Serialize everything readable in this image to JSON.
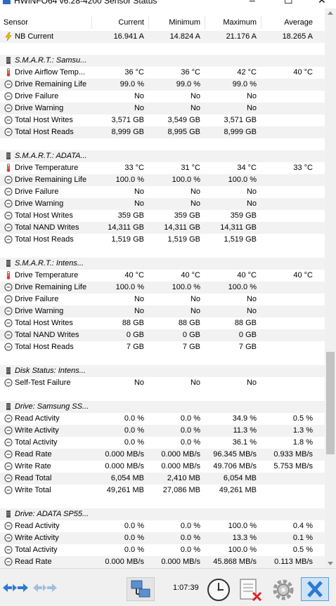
{
  "window": {
    "title": "HWiNFO64 v6.28-4200 Sensor Status",
    "minimize": "–",
    "maximize": "☐",
    "close": "✕"
  },
  "columns": {
    "sensor": "Sensor",
    "current": "Current",
    "minimum": "Minimum",
    "maximum": "Maximum",
    "average": "Average"
  },
  "rows": [
    {
      "type": "sensor",
      "icon": "current-icon",
      "name": "NB Current",
      "current": "16.941 A",
      "minimum": "14.824 A",
      "maximum": "21.176 A",
      "average": "18.265 A"
    },
    {
      "type": "spacer"
    },
    {
      "type": "group",
      "icon": "drive-icon",
      "name": "S.M.A.R.T.: Samsu..."
    },
    {
      "type": "sensor",
      "icon": "thermometer-icon",
      "name": "Drive Airflow Temp...",
      "current": "36 °C",
      "minimum": "36 °C",
      "maximum": "42 °C",
      "average": "40 °C"
    },
    {
      "type": "sensor",
      "icon": "status-icon",
      "name": "Drive Remaining Life",
      "current": "99.0 %",
      "minimum": "99.0 %",
      "maximum": "99.0 %",
      "average": ""
    },
    {
      "type": "sensor",
      "icon": "status-icon",
      "name": "Drive Failure",
      "current": "No",
      "minimum": "No",
      "maximum": "No",
      "average": ""
    },
    {
      "type": "sensor",
      "icon": "status-icon",
      "name": "Drive Warning",
      "current": "No",
      "minimum": "No",
      "maximum": "No",
      "average": ""
    },
    {
      "type": "sensor",
      "icon": "status-icon",
      "name": "Total Host Writes",
      "current": "3,571 GB",
      "minimum": "3,549 GB",
      "maximum": "3,571 GB",
      "average": ""
    },
    {
      "type": "sensor",
      "icon": "status-icon",
      "name": "Total Host Reads",
      "current": "8,999 GB",
      "minimum": "8,995 GB",
      "maximum": "8,999 GB",
      "average": ""
    },
    {
      "type": "spacer"
    },
    {
      "type": "group",
      "icon": "drive-icon",
      "name": "S.M.A.R.T.: ADATA..."
    },
    {
      "type": "sensor",
      "icon": "thermometer-icon",
      "name": "Drive Temperature",
      "current": "33 °C",
      "minimum": "31 °C",
      "maximum": "34 °C",
      "average": "33 °C"
    },
    {
      "type": "sensor",
      "icon": "status-icon",
      "name": "Drive Remaining Life",
      "current": "100.0 %",
      "minimum": "100.0 %",
      "maximum": "100.0 %",
      "average": ""
    },
    {
      "type": "sensor",
      "icon": "status-icon",
      "name": "Drive Failure",
      "current": "No",
      "minimum": "No",
      "maximum": "No",
      "average": ""
    },
    {
      "type": "sensor",
      "icon": "status-icon",
      "name": "Drive Warning",
      "current": "No",
      "minimum": "No",
      "maximum": "No",
      "average": ""
    },
    {
      "type": "sensor",
      "icon": "status-icon",
      "name": "Total Host Writes",
      "current": "359 GB",
      "minimum": "359 GB",
      "maximum": "359 GB",
      "average": ""
    },
    {
      "type": "sensor",
      "icon": "status-icon",
      "name": "Total NAND Writes",
      "current": "14,311 GB",
      "minimum": "14,311 GB",
      "maximum": "14,311 GB",
      "average": ""
    },
    {
      "type": "sensor",
      "icon": "status-icon",
      "name": "Total Host Reads",
      "current": "1,519 GB",
      "minimum": "1,519 GB",
      "maximum": "1,519 GB",
      "average": ""
    },
    {
      "type": "spacer"
    },
    {
      "type": "group",
      "icon": "drive-icon",
      "name": "S.M.A.R.T.: Intens..."
    },
    {
      "type": "sensor",
      "icon": "thermometer-icon",
      "name": "Drive Temperature",
      "current": "40 °C",
      "minimum": "40 °C",
      "maximum": "40 °C",
      "average": "40 °C"
    },
    {
      "type": "sensor",
      "icon": "status-icon",
      "name": "Drive Remaining Life",
      "current": "100.0 %",
      "minimum": "100.0 %",
      "maximum": "100.0 %",
      "average": ""
    },
    {
      "type": "sensor",
      "icon": "status-icon",
      "name": "Drive Failure",
      "current": "No",
      "minimum": "No",
      "maximum": "No",
      "average": ""
    },
    {
      "type": "sensor",
      "icon": "status-icon",
      "name": "Drive Warning",
      "current": "No",
      "minimum": "No",
      "maximum": "No",
      "average": ""
    },
    {
      "type": "sensor",
      "icon": "status-icon",
      "name": "Total Host Writes",
      "current": "88 GB",
      "minimum": "88 GB",
      "maximum": "88 GB",
      "average": ""
    },
    {
      "type": "sensor",
      "icon": "status-icon",
      "name": "Total NAND Writes",
      "current": "0 GB",
      "minimum": "0 GB",
      "maximum": "0 GB",
      "average": ""
    },
    {
      "type": "sensor",
      "icon": "status-icon",
      "name": "Total Host Reads",
      "current": "7 GB",
      "minimum": "7 GB",
      "maximum": "7 GB",
      "average": ""
    },
    {
      "type": "spacer"
    },
    {
      "type": "group",
      "icon": "drive-icon",
      "name": "Disk Status: Intens..."
    },
    {
      "type": "sensor",
      "icon": "status-icon",
      "name": "Self-Test Failure",
      "current": "No",
      "minimum": "No",
      "maximum": "No",
      "average": ""
    },
    {
      "type": "spacer"
    },
    {
      "type": "group",
      "icon": "drive-icon",
      "name": "Drive: Samsung SS..."
    },
    {
      "type": "sensor",
      "icon": "status-icon",
      "name": "Read Activity",
      "current": "0.0 %",
      "minimum": "0.0 %",
      "maximum": "34.9 %",
      "average": "0.5 %"
    },
    {
      "type": "sensor",
      "icon": "status-icon",
      "name": "Write Activity",
      "current": "0.0 %",
      "minimum": "0.0 %",
      "maximum": "11.3 %",
      "average": "1.3 %"
    },
    {
      "type": "sensor",
      "icon": "status-icon",
      "name": "Total Activity",
      "current": "0.0 %",
      "minimum": "0.0 %",
      "maximum": "36.1 %",
      "average": "1.8 %"
    },
    {
      "type": "sensor",
      "icon": "status-icon",
      "name": "Read Rate",
      "current": "0.000 MB/s",
      "minimum": "0.000 MB/s",
      "maximum": "96.345 MB/s",
      "average": "0.933 MB/s"
    },
    {
      "type": "sensor",
      "icon": "status-icon",
      "name": "Write Rate",
      "current": "0.000 MB/s",
      "minimum": "0.000 MB/s",
      "maximum": "49.706 MB/s",
      "average": "5.753 MB/s"
    },
    {
      "type": "sensor",
      "icon": "status-icon",
      "name": "Read Total",
      "current": "6,054 MB",
      "minimum": "2,410 MB",
      "maximum": "6,054 MB",
      "average": ""
    },
    {
      "type": "sensor",
      "icon": "status-icon",
      "name": "Write Total",
      "current": "49,261 MB",
      "minimum": "27,086 MB",
      "maximum": "49,261 MB",
      "average": ""
    },
    {
      "type": "spacer"
    },
    {
      "type": "group",
      "icon": "drive-icon",
      "name": "Drive: ADATA SP55..."
    },
    {
      "type": "sensor",
      "icon": "status-icon",
      "name": "Read Activity",
      "current": "0.0 %",
      "minimum": "0.0 %",
      "maximum": "100.0 %",
      "average": "0.4 %"
    },
    {
      "type": "sensor",
      "icon": "status-icon",
      "name": "Write Activity",
      "current": "0.0 %",
      "minimum": "0.0 %",
      "maximum": "13.3 %",
      "average": "0.1 %"
    },
    {
      "type": "sensor",
      "icon": "status-icon",
      "name": "Total Activity",
      "current": "0.0 %",
      "minimum": "0.0 %",
      "maximum": "100.0 %",
      "average": "0.5 %"
    },
    {
      "type": "sensor",
      "icon": "status-icon",
      "name": "Read Rate",
      "current": "0.000 MB/s",
      "minimum": "0.000 MB/s",
      "maximum": "45.868 MB/s",
      "average": "0.113 MB/s"
    }
  ],
  "toolbar": {
    "elapsed_time": "1:07:39",
    "buttons": [
      "nav-back-forward-icon",
      "nav-layout-icon",
      "network-icon",
      "clock-icon",
      "reset-icon",
      "settings-icon",
      "close-x-icon"
    ]
  },
  "colors": {
    "row_alt": "#f2f2f2",
    "accent_blue": "#2b7ad4",
    "close_bg": "#cfe3f6"
  }
}
